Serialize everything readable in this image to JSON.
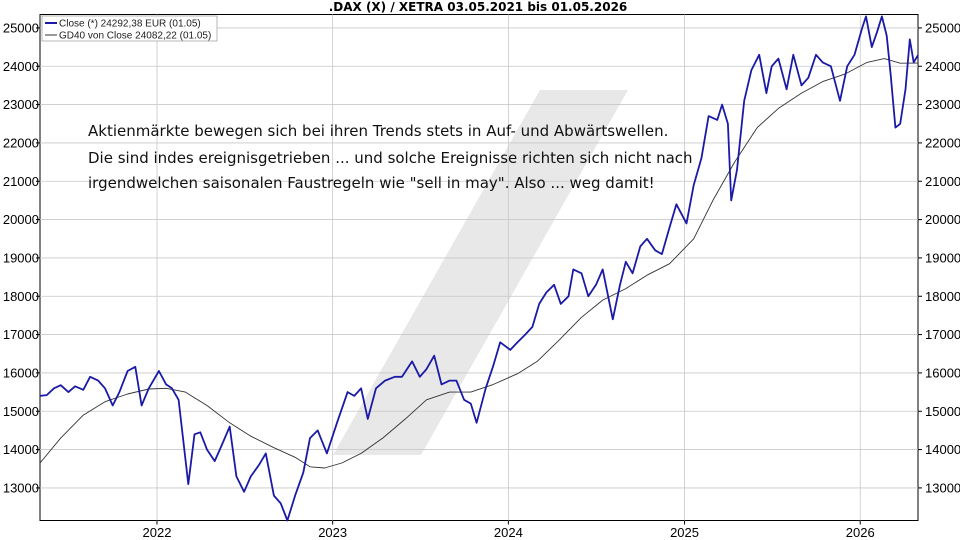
{
  "chart_data": {
    "type": "line",
    "title": ".DAX (X) / XETRA 03.05.2021 bis 01.05.2026",
    "xlabel": "",
    "ylabel": "",
    "ylim": [
      12150,
      25350
    ],
    "y_ticks": [
      13000,
      14000,
      15000,
      16000,
      17000,
      18000,
      19000,
      20000,
      21000,
      22000,
      23000,
      24000,
      25000
    ],
    "x_ticks": [
      "2022",
      "2023",
      "2024",
      "2025",
      "2026"
    ],
    "x_range": [
      "2021-05-03",
      "2026-05-01"
    ],
    "grid": true,
    "legend_position": "top-left",
    "legend": [
      "Close (*) 24292,38 EUR (01.05)",
      "GD40 von Close 24082,22 (01.05)"
    ],
    "annotation": [
      "Aktienmärkte bewegen sich bei ihren Trends stets in Auf- und Abwärtswellen.",
      "Die sind indes ereignisgetrieben ... und solche Ereignisse richten sich nicht nach",
      "irgendwelchen saisonalen Faustregeln wie \"sell in may\". Also ... weg damit!"
    ],
    "colors": {
      "close": "#1a1aa6",
      "gd40": "#333333",
      "grid": "#c8c8c8",
      "watermark": "#e6e6e6"
    },
    "series": [
      {
        "name": "Close (*) 24292,38 EUR (01.05)",
        "style": "close",
        "points": [
          [
            "2021-05-03",
            15400
          ],
          [
            "2021-05-17",
            15420
          ],
          [
            "2021-06-01",
            15600
          ],
          [
            "2021-06-15",
            15680
          ],
          [
            "2021-07-01",
            15500
          ],
          [
            "2021-07-15",
            15650
          ],
          [
            "2021-08-01",
            15560
          ],
          [
            "2021-08-15",
            15900
          ],
          [
            "2021-09-01",
            15800
          ],
          [
            "2021-09-15",
            15600
          ],
          [
            "2021-10-01",
            15150
          ],
          [
            "2021-10-15",
            15500
          ],
          [
            "2021-11-01",
            16050
          ],
          [
            "2021-11-17",
            16160
          ],
          [
            "2021-11-30",
            15150
          ],
          [
            "2021-12-15",
            15600
          ],
          [
            "2022-01-05",
            16050
          ],
          [
            "2022-01-20",
            15700
          ],
          [
            "2022-02-01",
            15600
          ],
          [
            "2022-02-15",
            15300
          ],
          [
            "2022-03-07",
            13100
          ],
          [
            "2022-03-20",
            14400
          ],
          [
            "2022-04-01",
            14450
          ],
          [
            "2022-04-15",
            14000
          ],
          [
            "2022-05-01",
            13700
          ],
          [
            "2022-05-15",
            14100
          ],
          [
            "2022-06-01",
            14600
          ],
          [
            "2022-06-15",
            13300
          ],
          [
            "2022-07-01",
            12900
          ],
          [
            "2022-07-15",
            13300
          ],
          [
            "2022-08-01",
            13600
          ],
          [
            "2022-08-15",
            13900
          ],
          [
            "2022-09-01",
            12800
          ],
          [
            "2022-09-15",
            12600
          ],
          [
            "2022-09-29",
            12150
          ],
          [
            "2022-10-15",
            12800
          ],
          [
            "2022-11-01",
            13400
          ],
          [
            "2022-11-15",
            14300
          ],
          [
            "2022-12-01",
            14500
          ],
          [
            "2022-12-20",
            13900
          ],
          [
            "2023-01-10",
            14700
          ],
          [
            "2023-02-01",
            15500
          ],
          [
            "2023-02-15",
            15400
          ],
          [
            "2023-03-01",
            15600
          ],
          [
            "2023-03-15",
            14800
          ],
          [
            "2023-04-01",
            15600
          ],
          [
            "2023-04-20",
            15800
          ],
          [
            "2023-05-10",
            15900
          ],
          [
            "2023-05-25",
            15900
          ],
          [
            "2023-06-15",
            16300
          ],
          [
            "2023-07-01",
            15900
          ],
          [
            "2023-07-15",
            16100
          ],
          [
            "2023-07-31",
            16450
          ],
          [
            "2023-08-15",
            15700
          ],
          [
            "2023-09-01",
            15800
          ],
          [
            "2023-09-15",
            15800
          ],
          [
            "2023-10-01",
            15300
          ],
          [
            "2023-10-15",
            15200
          ],
          [
            "2023-10-27",
            14700
          ],
          [
            "2023-11-15",
            15600
          ],
          [
            "2023-12-01",
            16200
          ],
          [
            "2023-12-15",
            16800
          ],
          [
            "2024-01-05",
            16600
          ],
          [
            "2024-01-20",
            16800
          ],
          [
            "2024-02-05",
            17000
          ],
          [
            "2024-02-20",
            17200
          ],
          [
            "2024-03-05",
            17800
          ],
          [
            "2024-03-20",
            18100
          ],
          [
            "2024-04-05",
            18300
          ],
          [
            "2024-04-19",
            17800
          ],
          [
            "2024-05-05",
            18000
          ],
          [
            "2024-05-15",
            18700
          ],
          [
            "2024-06-01",
            18600
          ],
          [
            "2024-06-15",
            18000
          ],
          [
            "2024-07-01",
            18300
          ],
          [
            "2024-07-15",
            18700
          ],
          [
            "2024-08-05",
            17400
          ],
          [
            "2024-08-20",
            18300
          ],
          [
            "2024-09-01",
            18900
          ],
          [
            "2024-09-15",
            18600
          ],
          [
            "2024-10-01",
            19300
          ],
          [
            "2024-10-15",
            19500
          ],
          [
            "2024-11-01",
            19200
          ],
          [
            "2024-11-15",
            19100
          ],
          [
            "2024-12-01",
            19800
          ],
          [
            "2024-12-15",
            20400
          ],
          [
            "2025-01-05",
            19900
          ],
          [
            "2025-01-20",
            20900
          ],
          [
            "2025-02-05",
            21600
          ],
          [
            "2025-02-20",
            22700
          ],
          [
            "2025-03-10",
            22600
          ],
          [
            "2025-03-20",
            23000
          ],
          [
            "2025-04-01",
            22500
          ],
          [
            "2025-04-08",
            20500
          ],
          [
            "2025-04-20",
            21300
          ],
          [
            "2025-05-05",
            23100
          ],
          [
            "2025-05-20",
            23900
          ],
          [
            "2025-06-05",
            24300
          ],
          [
            "2025-06-20",
            23300
          ],
          [
            "2025-07-01",
            24000
          ],
          [
            "2025-07-15",
            24200
          ],
          [
            "2025-08-01",
            23400
          ],
          [
            "2025-08-15",
            24300
          ],
          [
            "2025-09-01",
            23500
          ],
          [
            "2025-09-15",
            23700
          ],
          [
            "2025-10-01",
            24300
          ],
          [
            "2025-10-15",
            24100
          ],
          [
            "2025-11-01",
            24000
          ],
          [
            "2025-11-20",
            23100
          ],
          [
            "2025-12-05",
            24000
          ],
          [
            "2025-12-20",
            24300
          ],
          [
            "2026-01-05",
            25000
          ],
          [
            "2026-01-13",
            25300
          ],
          [
            "2026-01-25",
            24500
          ],
          [
            "2026-02-05",
            24900
          ],
          [
            "2026-02-15",
            25300
          ],
          [
            "2026-02-25",
            24800
          ],
          [
            "2026-03-05",
            23800
          ],
          [
            "2026-03-15",
            22400
          ],
          [
            "2026-03-25",
            22500
          ],
          [
            "2026-04-05",
            23400
          ],
          [
            "2026-04-14",
            24700
          ],
          [
            "2026-04-22",
            24100
          ],
          [
            "2026-05-01",
            24292
          ]
        ]
      },
      {
        "name": "GD40 von Close 24082,22 (01.05)",
        "style": "gd40",
        "points": [
          [
            "2021-05-03",
            13650
          ],
          [
            "2021-06-15",
            14300
          ],
          [
            "2021-08-01",
            14900
          ],
          [
            "2021-09-15",
            15250
          ],
          [
            "2021-11-01",
            15450
          ],
          [
            "2021-12-15",
            15580
          ],
          [
            "2022-01-20",
            15600
          ],
          [
            "2022-03-01",
            15500
          ],
          [
            "2022-04-15",
            15150
          ],
          [
            "2022-06-01",
            14700
          ],
          [
            "2022-07-15",
            14350
          ],
          [
            "2022-09-01",
            14050
          ],
          [
            "2022-10-15",
            13800
          ],
          [
            "2022-11-15",
            13550
          ],
          [
            "2022-12-15",
            13520
          ],
          [
            "2023-01-20",
            13650
          ],
          [
            "2023-03-01",
            13900
          ],
          [
            "2023-04-15",
            14300
          ],
          [
            "2023-06-01",
            14800
          ],
          [
            "2023-07-15",
            15300
          ],
          [
            "2023-09-01",
            15500
          ],
          [
            "2023-10-15",
            15500
          ],
          [
            "2023-12-01",
            15700
          ],
          [
            "2024-01-20",
            15980
          ],
          [
            "2024-03-01",
            16300
          ],
          [
            "2024-04-15",
            16850
          ],
          [
            "2024-06-01",
            17450
          ],
          [
            "2024-07-15",
            17900
          ],
          [
            "2024-09-01",
            18200
          ],
          [
            "2024-10-15",
            18550
          ],
          [
            "2024-12-01",
            18850
          ],
          [
            "2025-01-20",
            19500
          ],
          [
            "2025-03-01",
            20500
          ],
          [
            "2025-04-15",
            21500
          ],
          [
            "2025-06-01",
            22400
          ],
          [
            "2025-07-15",
            22900
          ],
          [
            "2025-09-01",
            23300
          ],
          [
            "2025-10-15",
            23600
          ],
          [
            "2025-12-01",
            23800
          ],
          [
            "2026-01-15",
            24100
          ],
          [
            "2026-02-20",
            24200
          ],
          [
            "2026-03-25",
            24080
          ],
          [
            "2026-05-01",
            24082
          ]
        ]
      }
    ]
  }
}
